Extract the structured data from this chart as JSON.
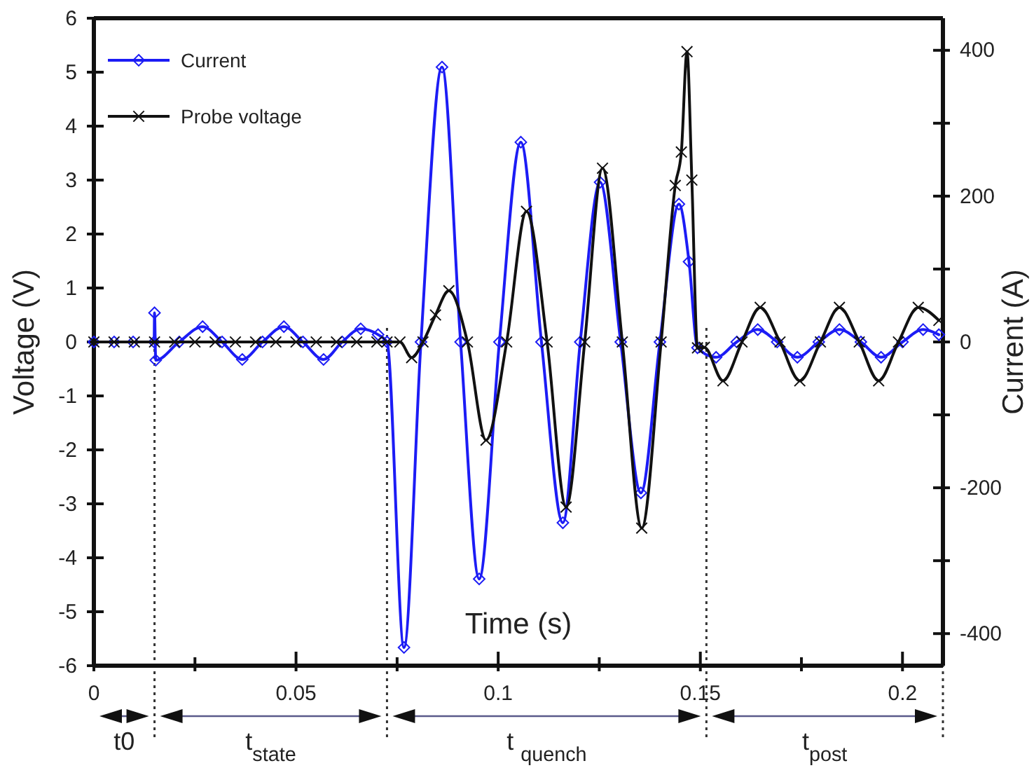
{
  "chart_data": {
    "type": "line",
    "xlabel": "Time (s)",
    "ylabel": "Voltage (V)",
    "y2label": "Current (A)",
    "xlim": [
      0,
      0.21
    ],
    "xticks": [
      0,
      {
        "value": 0.025,
        "label": null
      },
      0.05,
      {
        "value": 0.075,
        "label": null
      },
      0.1,
      {
        "value": 0.125,
        "label": null
      },
      0.15,
      {
        "value": 0.175,
        "label": null
      },
      0.2
    ],
    "ylim": [
      -6,
      6
    ],
    "yticks": [
      -6,
      -5,
      -4,
      -3,
      -2,
      -1,
      0,
      1,
      2,
      3,
      4,
      5,
      6
    ],
    "y2lim": [
      -444,
      444
    ],
    "y2ticks": [
      -400,
      {
        "value": -300,
        "label": null
      },
      -200,
      {
        "value": -100,
        "label": null
      },
      0,
      {
        "value": 100,
        "label": null
      },
      200,
      {
        "value": 300,
        "label": null
      },
      400
    ],
    "legend": "top left",
    "grid": false,
    "line_style": "solid",
    "series": [
      {
        "name": "Current",
        "color": "#1c1cf5",
        "axis": "y2",
        "marker": "diamond",
        "x": [
          0,
          0.005,
          0.0097,
          0.0149,
          0.015,
          0.0153,
          0.0211,
          0.0269,
          0.0317,
          0.0367,
          0.0417,
          0.047,
          0.0517,
          0.0568,
          0.0614,
          0.066,
          0.0703,
          0.0725,
          0.0767,
          0.0809,
          0.0861,
          0.0907,
          0.0953,
          0.1003,
          0.1056,
          0.1107,
          0.116,
          0.1203,
          0.1252,
          0.1303,
          0.1353,
          0.14,
          0.1447,
          0.1472,
          0.1493,
          0.1539,
          0.159,
          0.1642,
          0.169,
          0.174,
          0.1793,
          0.1844,
          0.1897,
          0.1947,
          0.2,
          0.2051,
          0.209
        ],
        "values": [
          0,
          0,
          0,
          0,
          40,
          -25,
          0,
          21,
          0,
          -24,
          0,
          21,
          0,
          -24,
          0,
          18,
          10,
          0,
          -419,
          0,
          377,
          0,
          -325,
          0,
          274,
          0,
          -248,
          0,
          219,
          0,
          -207,
          0,
          189,
          110,
          -8,
          -21,
          0,
          17,
          0,
          -21,
          0,
          17,
          0,
          -21,
          0,
          17,
          10
        ]
      },
      {
        "name": "Probe voltage",
        "color": "#111111",
        "marker": "cross",
        "x": [
          0,
          0.005,
          0.01,
          0.015,
          0.02,
          0.025,
          0.03,
          0.035,
          0.04,
          0.045,
          0.05,
          0.055,
          0.06,
          0.065,
          0.07,
          0.0725,
          0.0757,
          0.0786,
          0.0814,
          0.0845,
          0.0878,
          0.0924,
          0.097,
          0.1021,
          0.107,
          0.1121,
          0.1168,
          0.1214,
          0.1258,
          0.1307,
          0.1355,
          0.1403,
          0.1438,
          0.1453,
          0.1467,
          0.1479,
          0.1493,
          0.151,
          0.1556,
          0.1603,
          0.1648,
          0.1697,
          0.1746,
          0.1797,
          0.1844,
          0.1893,
          0.1941,
          0.199,
          0.2039,
          0.209
        ],
        "values": [
          0,
          0,
          0,
          0,
          0,
          0,
          0,
          0,
          0,
          0,
          0,
          0,
          0,
          0,
          0,
          0,
          0,
          -0.29,
          0,
          0.5,
          0.95,
          0,
          -1.82,
          0,
          2.42,
          0,
          -3.06,
          0,
          3.22,
          0,
          -3.45,
          0,
          2.9,
          3.52,
          5.38,
          3.0,
          -0.11,
          -0.1,
          -0.72,
          0,
          0.64,
          0,
          -0.72,
          0,
          0.64,
          0,
          -0.72,
          0,
          0.64,
          0.4
        ]
      }
    ],
    "ref_lines": [
      {
        "axis": "x",
        "value": 0.015,
        "line_style": "dotted",
        "color": "#333333"
      },
      {
        "axis": "x",
        "value": 0.0725,
        "line_style": "dotted",
        "color": "#333333"
      },
      {
        "axis": "x",
        "value": 0.1515,
        "line_style": "dotted",
        "color": "#333333"
      },
      {
        "axis": "x",
        "value": 0.21,
        "line_style": "dotted",
        "color": "#333333"
      }
    ],
    "annotations": [
      "t0",
      "t$_{state}$",
      "t $_{quench}$",
      "t$_{post}$"
    ]
  }
}
